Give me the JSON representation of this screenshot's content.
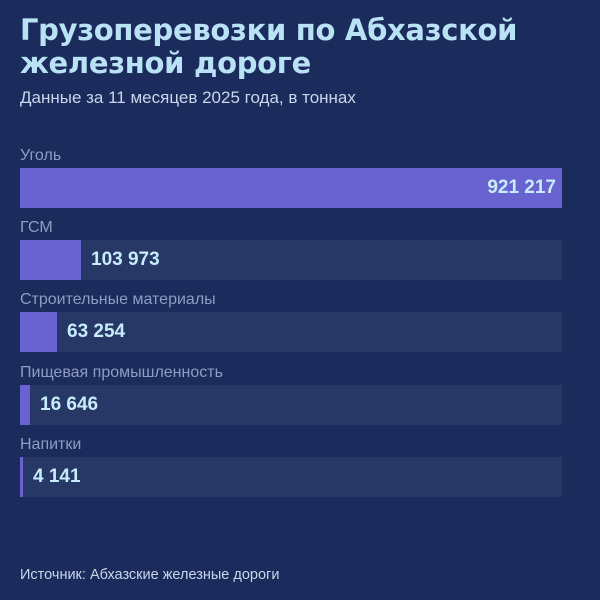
{
  "header": {
    "title": "Грузоперевозки по Абхазской железной дороге",
    "subtitle": "Данные за 11 месяцев 2025 года, в тоннах"
  },
  "footer": {
    "source": "Источник: Абхазские железные дороги"
  },
  "colors": {
    "background": "#1b2b5c",
    "bar": "#6863d1",
    "track": "#273766",
    "title": "#b9e2f5",
    "value": "#c7ecfb"
  },
  "chart_data": {
    "type": "bar",
    "orientation": "horizontal",
    "title": "Грузоперевозки по Абхазской железной дороге",
    "subtitle": "Данные за 11 месяцев 2025 года, в тоннах",
    "categories": [
      "Уголь",
      "ГСМ",
      "Строительные материалы",
      "Пищевая промышленность",
      "Напитки"
    ],
    "values": [
      921217,
      103973,
      63254,
      16646,
      4141
    ],
    "value_labels": [
      "921 217",
      "103 973",
      "63 254",
      "16 646",
      "4 141"
    ],
    "xlabel": "",
    "ylabel": "",
    "unit": "тонны",
    "grid": false,
    "legend": "none",
    "source": "Источник: Абхазские железные дороги"
  }
}
